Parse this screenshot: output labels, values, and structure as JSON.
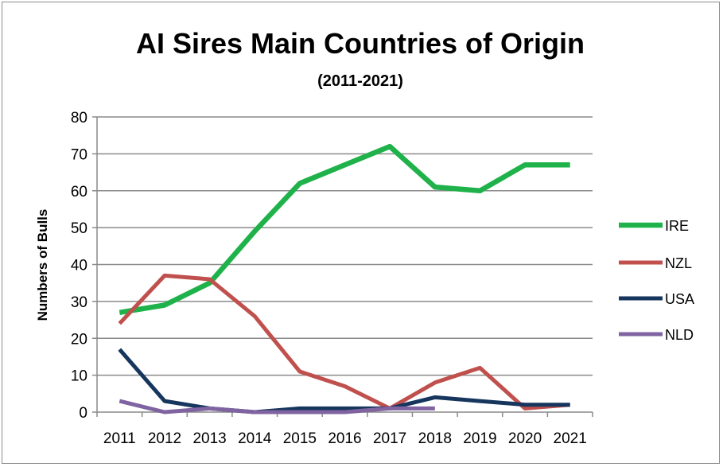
{
  "chart_data": {
    "type": "line",
    "title": "AI Sires Main Countries of Origin",
    "subtitle": "(2011-2021)",
    "xlabel": "",
    "ylabel": "Numbers of Bulls",
    "ylim": [
      0,
      80
    ],
    "yticks": [
      "0",
      "10",
      "20",
      "30",
      "40",
      "50",
      "60",
      "70",
      "80"
    ],
    "categories": [
      "2011",
      "2012",
      "2013",
      "2014",
      "2015",
      "2016",
      "2017",
      "2018",
      "2019",
      "2020",
      "2021"
    ],
    "grid": "horizontal",
    "legend_position": "right",
    "series": [
      {
        "name": "IRE",
        "color": "#1fb24a",
        "values": [
          27,
          29,
          35,
          49,
          62,
          67,
          72,
          61,
          60,
          67,
          67
        ]
      },
      {
        "name": "NZL",
        "color": "#c0504d",
        "values": [
          24,
          37,
          36,
          26,
          11,
          7,
          1,
          8,
          12,
          1,
          2
        ]
      },
      {
        "name": "USA",
        "color": "#17365d",
        "values": [
          17,
          3,
          1,
          0,
          1,
          1,
          1,
          4,
          3,
          2,
          2
        ]
      },
      {
        "name": "NLD",
        "color": "#8064a2",
        "values": [
          3,
          0,
          1,
          0,
          0,
          0,
          1,
          1,
          null,
          null,
          null
        ]
      }
    ]
  }
}
